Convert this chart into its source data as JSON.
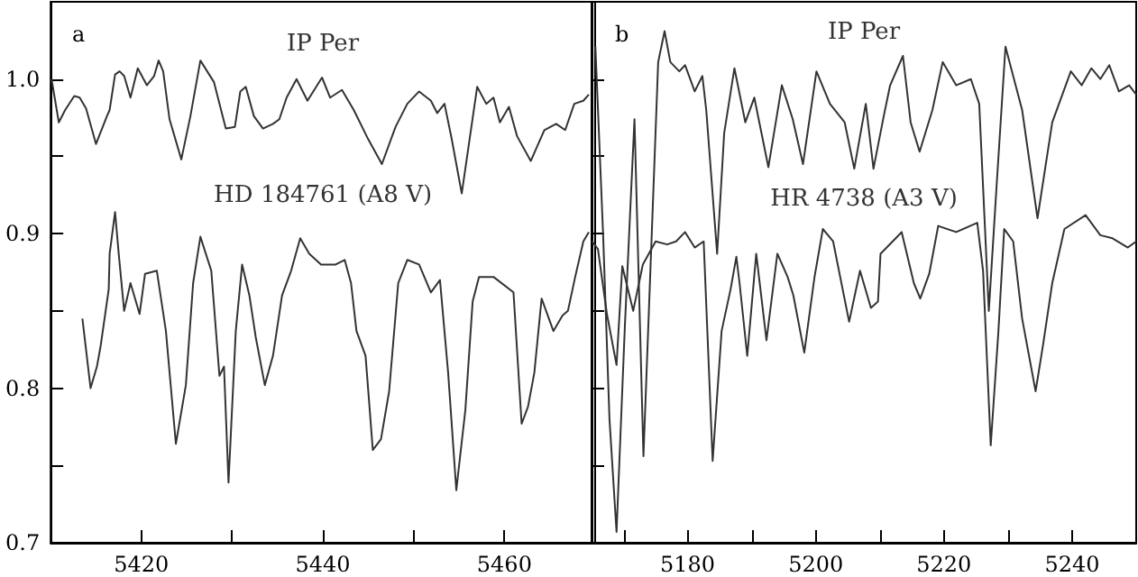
{
  "chart_data": [
    {
      "type": "line",
      "title": "a",
      "marker": "none",
      "grid": false,
      "xlim": [
        5410,
        5470
      ],
      "xticks": [
        5420,
        {
          "value": 5430,
          "label": null
        },
        5440,
        {
          "value": 5450,
          "label": null
        },
        5460
      ],
      "ylim": [
        0.7,
        1.05
      ],
      "yticks": [
        {
          "value": 0.7,
          "label": "0.7"
        },
        {
          "value": 0.75,
          "label": null
        },
        {
          "value": 0.8,
          "label": "0.8"
        },
        {
          "value": 0.85,
          "label": null
        },
        {
          "value": 0.9,
          "label": "0.9"
        },
        {
          "value": 0.95,
          "label": null
        },
        {
          "value": 1.0,
          "label": "1.0"
        }
      ],
      "series": [
        {
          "name": "IP Per",
          "color": "#333333",
          "x": [
            5410.1,
            5410.9,
            5411.6,
            5412.6,
            5413.2,
            5413.9,
            5415.0,
            5416.2,
            5416.5,
            5417.1,
            5417.6,
            5418.1,
            5418.8,
            5419.6,
            5420.6,
            5421.4,
            5421.9,
            5422.4,
            5423.1,
            5424.4,
            5425.4,
            5426.5,
            5428.0,
            5429.3,
            5430.3,
            5430.9,
            5431.5,
            5432.4,
            5433.4,
            5434.5,
            5435.2,
            5436.0,
            5437.1,
            5438.3,
            5439.9,
            5440.8,
            5442.1,
            5443.4,
            5445.0,
            5446.5,
            5448.0,
            5449.3,
            5450.6,
            5451.9,
            5452.6,
            5453.4,
            5454.2,
            5455.3,
            5457.0,
            5458.0,
            5458.8,
            5459.5,
            5460.5,
            5461.4,
            5462.9,
            5464.4,
            5465.7,
            5466.7,
            5467.7,
            5468.7,
            5469.3
          ],
          "values": [
            1.0,
            0.972,
            0.98,
            0.989,
            0.988,
            0.981,
            0.958,
            0.976,
            0.98,
            1.003,
            1.005,
            1.002,
            0.988,
            1.007,
            0.996,
            1.002,
            1.012,
            1.005,
            0.974,
            0.948,
            0.976,
            1.012,
            0.998,
            0.968,
            0.969,
            0.992,
            0.995,
            0.976,
            0.968,
            0.971,
            0.974,
            0.988,
            1.0,
            0.986,
            1.001,
            0.988,
            0.993,
            0.98,
            0.961,
            0.945,
            0.969,
            0.984,
            0.992,
            0.986,
            0.978,
            0.984,
            0.961,
            0.926,
            0.995,
            0.984,
            0.988,
            0.972,
            0.982,
            0.963,
            0.947,
            0.967,
            0.971,
            0.967,
            0.984,
            0.986,
            0.99
          ]
        },
        {
          "name": "HD 184761 (A8 V)",
          "color": "#333333",
          "x": [
            5413.5,
            5414.4,
            5415.1,
            5415.5,
            5416.4,
            5416.5,
            5417.1,
            5417.5,
            5418.1,
            5418.8,
            5419.8,
            5420.4,
            5421.7,
            5422.7,
            5423.8,
            5424.9,
            5425.7,
            5426.5,
            5427.7,
            5428.6,
            5429.1,
            5429.6,
            5430.4,
            5431.1,
            5431.9,
            5432.6,
            5433.6,
            5434.5,
            5435.5,
            5436.5,
            5437.5,
            5438.5,
            5439.8,
            5441.4,
            5442.4,
            5443.1,
            5443.7,
            5444.7,
            5445.5,
            5446.4,
            5447.3,
            5448.3,
            5449.3,
            5450.6,
            5451.9,
            5452.9,
            5453.8,
            5454.7,
            5455.7,
            5456.5,
            5457.2,
            5458.8,
            5461.0,
            5461.9,
            5462.6,
            5463.3,
            5464.1,
            5465.4,
            5466.4,
            5467.0,
            5467.8,
            5468.7,
            5469.3
          ],
          "values": [
            0.845,
            0.8,
            0.814,
            0.827,
            0.864,
            0.887,
            0.914,
            0.887,
            0.85,
            0.868,
            0.848,
            0.874,
            0.876,
            0.837,
            0.764,
            0.802,
            0.868,
            0.898,
            0.876,
            0.808,
            0.814,
            0.739,
            0.837,
            0.88,
            0.86,
            0.833,
            0.802,
            0.821,
            0.86,
            0.876,
            0.897,
            0.887,
            0.88,
            0.88,
            0.883,
            0.868,
            0.837,
            0.821,
            0.76,
            0.767,
            0.798,
            0.868,
            0.883,
            0.88,
            0.862,
            0.87,
            0.81,
            0.734,
            0.786,
            0.856,
            0.872,
            0.872,
            0.862,
            0.777,
            0.788,
            0.81,
            0.858,
            0.837,
            0.847,
            0.85,
            0.872,
            0.895,
            0.901
          ]
        }
      ]
    },
    {
      "type": "line",
      "title": "b",
      "marker": "none",
      "grid": false,
      "tick_labels": "x",
      "xlim": [
        5165,
        5250
      ],
      "xticks": [
        {
          "value": 5170,
          "label": null
        },
        5180,
        {
          "value": 5190,
          "label": null
        },
        5200,
        {
          "value": 5210,
          "label": null
        },
        5220,
        {
          "value": 5230,
          "label": null
        },
        5240
      ],
      "ylim": [
        0.7,
        1.05
      ],
      "yticks": [
        {
          "value": 0.7,
          "label": null
        },
        {
          "value": 0.75,
          "label": null
        },
        {
          "value": 0.8,
          "label": null
        },
        {
          "value": 0.85,
          "label": null
        },
        {
          "value": 0.9,
          "label": null
        },
        {
          "value": 0.95,
          "label": null
        },
        {
          "value": 1.0,
          "label": null
        }
      ],
      "series": [
        {
          "name": "IP Per",
          "color": "#333333",
          "x": [
            5165.6,
            5166.8,
            5167.8,
            5168.9,
            5170.2,
            5171.7,
            5173.1,
            5174.4,
            5175.4,
            5176.4,
            5177.3,
            5178.7,
            5179.6,
            5181.1,
            5182.3,
            5182.9,
            5184.6,
            5185.7,
            5187.3,
            5189.0,
            5190.4,
            5192.6,
            5194.7,
            5196.4,
            5198.0,
            5200.1,
            5202.2,
            5204.5,
            5206.0,
            5207.8,
            5209.0,
            5210.6,
            5211.6,
            5213.6,
            5214.8,
            5216.2,
            5218.2,
            5219.8,
            5221.9,
            5224.2,
            5225.5,
            5227.0,
            5228.2,
            5229.6,
            5230.8,
            5232.2,
            5234.6,
            5236.9,
            5239.8,
            5241.5,
            5243.0,
            5244.4,
            5245.8,
            5247.3,
            5248.9,
            5250.0
          ],
          "values": [
            1.021,
            0.9,
            0.78,
            0.707,
            0.84,
            0.974,
            0.756,
            0.9,
            1.011,
            1.031,
            1.011,
            1.005,
            1.009,
            0.992,
            1.002,
            0.98,
            0.887,
            0.965,
            1.007,
            0.972,
            0.988,
            0.943,
            0.996,
            0.974,
            0.945,
            1.005,
            0.984,
            0.972,
            0.942,
            0.984,
            0.942,
            0.976,
            0.996,
            1.015,
            0.972,
            0.953,
            0.98,
            1.011,
            0.996,
            1.0,
            0.984,
            0.85,
            0.93,
            1.021,
            1.002,
            0.98,
            0.91,
            0.972,
            1.005,
            0.996,
            1.007,
            1.0,
            1.009,
            0.992,
            0.996,
            0.99
          ]
        },
        {
          "name": "HR 4738 (A3 V)",
          "color": "#333333",
          "x": [
            5165.1,
            5166.0,
            5167.4,
            5168.9,
            5169.8,
            5171.5,
            5173.0,
            5175.0,
            5176.8,
            5178.2,
            5179.6,
            5181.1,
            5182.5,
            5183.9,
            5185.3,
            5186.7,
            5187.6,
            5188.1,
            5189.3,
            5190.7,
            5192.3,
            5194.0,
            5195.6,
            5196.5,
            5198.2,
            5199.8,
            5201.1,
            5202.7,
            5205.2,
            5206.9,
            5208.6,
            5209.7,
            5210.1,
            5213.4,
            5215.3,
            5216.3,
            5217.7,
            5219.1,
            5221.9,
            5225.2,
            5226.1,
            5227.3,
            5228.5,
            5229.4,
            5230.8,
            5232.2,
            5234.3,
            5235.5,
            5236.9,
            5238.8,
            5242.1,
            5244.4,
            5246.3,
            5248.7,
            5250.0
          ],
          "values": [
            0.895,
            0.89,
            0.848,
            0.815,
            0.879,
            0.85,
            0.88,
            0.895,
            0.893,
            0.895,
            0.901,
            0.891,
            0.895,
            0.753,
            0.837,
            0.864,
            0.885,
            0.868,
            0.821,
            0.887,
            0.831,
            0.887,
            0.872,
            0.86,
            0.823,
            0.872,
            0.903,
            0.895,
            0.843,
            0.876,
            0.852,
            0.856,
            0.887,
            0.901,
            0.868,
            0.858,
            0.874,
            0.905,
            0.901,
            0.907,
            0.876,
            0.763,
            0.837,
            0.903,
            0.895,
            0.845,
            0.798,
            0.829,
            0.868,
            0.903,
            0.912,
            0.899,
            0.897,
            0.891,
            0.895
          ]
        }
      ]
    }
  ]
}
